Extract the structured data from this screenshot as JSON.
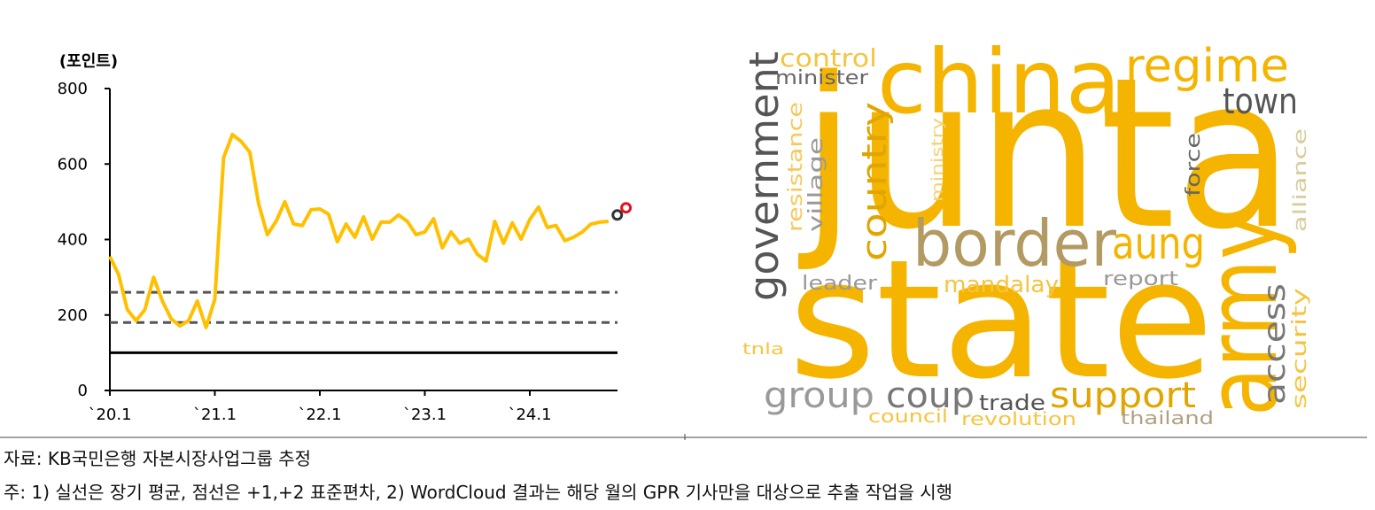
{
  "chart_data": {
    "type": "line",
    "y_label": "(포인트)",
    "categories": [
      "`20.1",
      null,
      null,
      null,
      null,
      null,
      null,
      null,
      null,
      null,
      null,
      null,
      "`21.1",
      null,
      null,
      null,
      null,
      null,
      null,
      null,
      null,
      null,
      null,
      null,
      "`22.1",
      null,
      null,
      null,
      null,
      null,
      null,
      null,
      null,
      null,
      null,
      null,
      "`23.1",
      null,
      null,
      null,
      null,
      null,
      null,
      null,
      null,
      null,
      null,
      null,
      "`24.1",
      null,
      null,
      null,
      null,
      null,
      null,
      null,
      null,
      null,
      null,
      null
    ],
    "series": [
      {
        "style": "line",
        "color": "#ffc000",
        "values": [
          355,
          307,
          214,
          185,
          214,
          300,
          237,
          190,
          171,
          185,
          237,
          167,
          242,
          617,
          678,
          660,
          631,
          495,
          413,
          448,
          500,
          441,
          437,
          479,
          481,
          467,
          394,
          441,
          406,
          460,
          401,
          446,
          446,
          465,
          448,
          413,
          420,
          455,
          378,
          420,
          390,
          401,
          361,
          343,
          448,
          390,
          444,
          401,
          453,
          486,
          432,
          437,
          397,
          406,
          420,
          441,
          446,
          448,
          null,
          null
        ]
      },
      {
        "style": "marker",
        "color": "#333333",
        "values": [
          null,
          null,
          null,
          null,
          null,
          null,
          null,
          null,
          null,
          null,
          null,
          null,
          null,
          null,
          null,
          null,
          null,
          null,
          null,
          null,
          null,
          null,
          null,
          null,
          null,
          null,
          null,
          null,
          null,
          null,
          null,
          null,
          null,
          null,
          null,
          null,
          null,
          null,
          null,
          null,
          null,
          null,
          null,
          null,
          null,
          null,
          null,
          null,
          null,
          null,
          null,
          null,
          null,
          null,
          null,
          null,
          null,
          null,
          465,
          null
        ]
      },
      {
        "style": "marker",
        "color": "#e8101e",
        "values": [
          null,
          null,
          null,
          null,
          null,
          null,
          null,
          null,
          null,
          null,
          null,
          null,
          null,
          null,
          null,
          null,
          null,
          null,
          null,
          null,
          null,
          null,
          null,
          null,
          null,
          null,
          null,
          null,
          null,
          null,
          null,
          null,
          null,
          null,
          null,
          null,
          null,
          null,
          null,
          null,
          null,
          null,
          null,
          null,
          null,
          null,
          null,
          null,
          null,
          null,
          null,
          null,
          null,
          null,
          null,
          null,
          null,
          null,
          null,
          484
        ]
      }
    ],
    "reference_lines": [
      {
        "value": 100,
        "style": "solid"
      },
      {
        "value": 180,
        "style": "dashed"
      },
      {
        "value": 260,
        "style": "dashed"
      }
    ],
    "ylim": [
      0,
      800
    ],
    "yticks": [
      0,
      200,
      400,
      600,
      800
    ]
  },
  "wordcloud": {
    "words": [
      "junta",
      "state",
      "china",
      "army",
      "border",
      "regime",
      "town",
      "government",
      "control",
      "minister",
      "country",
      "resistance",
      "village",
      "ministry",
      "force",
      "alliance",
      "aung",
      "leader",
      "mandalay",
      "report",
      "access",
      "security",
      "tnla",
      "group",
      "coup",
      "trade",
      "support",
      "council",
      "revolution",
      "thailand"
    ]
  },
  "footer": {
    "source": "자료: KB국민은행 자본시장사업그룹 추정",
    "note": "주: 1) 실선은 장기 평균, 점선은 +1,+2 표준편차, 2) WordCloud 결과는 해당 월의 GPR 기사만을 대상으로 추출 작업을 시행"
  }
}
